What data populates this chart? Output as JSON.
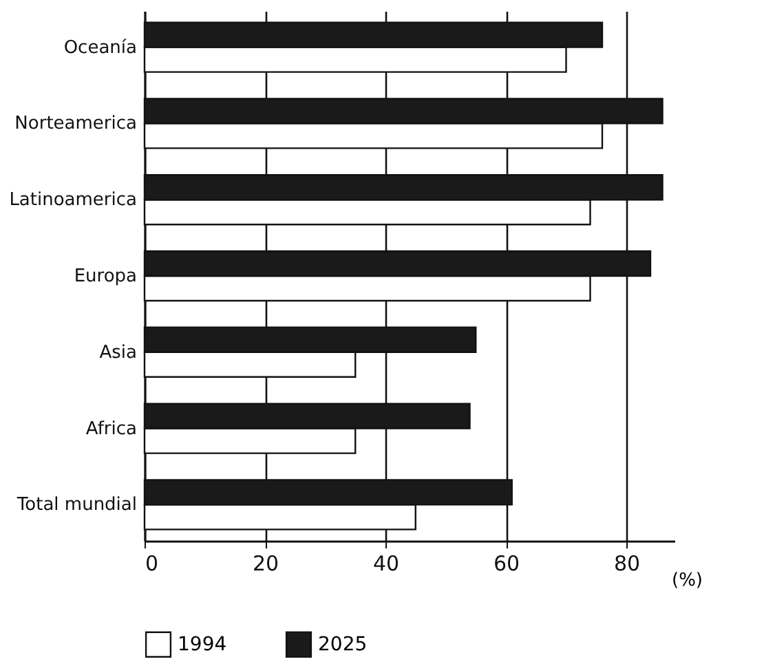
{
  "chart_data": {
    "type": "bar",
    "orientation": "horizontal",
    "categories": [
      "Oceanía",
      "Norteamerica",
      "Latinoamerica",
      "Europa",
      "Asia",
      "Africa",
      "Total mundial"
    ],
    "series": [
      {
        "name": "1994",
        "color": "#ffffff",
        "values": [
          70,
          76,
          74,
          74,
          35,
          35,
          45
        ]
      },
      {
        "name": "2025",
        "color": "#1a1a1a",
        "values": [
          76,
          86,
          86,
          84,
          55,
          54,
          61
        ]
      }
    ],
    "xlabel": "(%)",
    "xlim": [
      0,
      88
    ],
    "xticks": [
      0,
      20,
      40,
      60,
      80
    ],
    "grid": "x",
    "legend": "bottom"
  }
}
